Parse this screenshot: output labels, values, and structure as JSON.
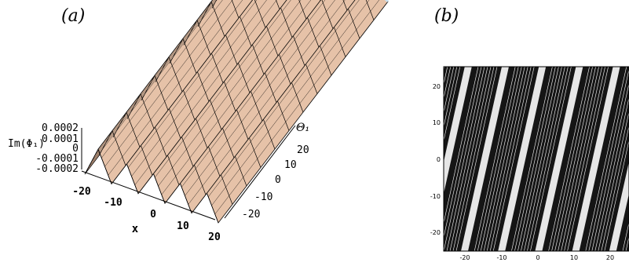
{
  "panels": {
    "a_label": "(a)",
    "b_label": "(b)"
  },
  "chart_data": [
    {
      "type": "surface3d",
      "panel": "(a)",
      "zlabel": "Im(Φ₁)",
      "xlabel": "x",
      "ylabel": "Θ₁",
      "z_ticks": [
        "0.0002",
        "0.0001",
        "0",
        "-0.0001",
        "-0.0002"
      ],
      "x_ticks": [
        "-20",
        "-10",
        "0",
        "10",
        "20"
      ],
      "y_ticks": [
        "20",
        "10",
        "0",
        "-10",
        "-20"
      ],
      "zlim": [
        -0.0002,
        0.0002
      ],
      "xlim": [
        -25,
        25
      ],
      "ylim": [
        -25,
        25
      ],
      "ridges": 5,
      "surface_color": "#e6c2a8",
      "edge_color": "#c9e0ee"
    },
    {
      "type": "contour",
      "panel": "(b)",
      "x_ticks": [
        "-20",
        "-10",
        "0",
        "10",
        "20"
      ],
      "y_ticks": [
        "20",
        "10",
        "0",
        "-10",
        "-20"
      ],
      "xlim": [
        -25,
        25
      ],
      "ylim": [
        -25,
        25
      ],
      "bands": 5
    }
  ]
}
